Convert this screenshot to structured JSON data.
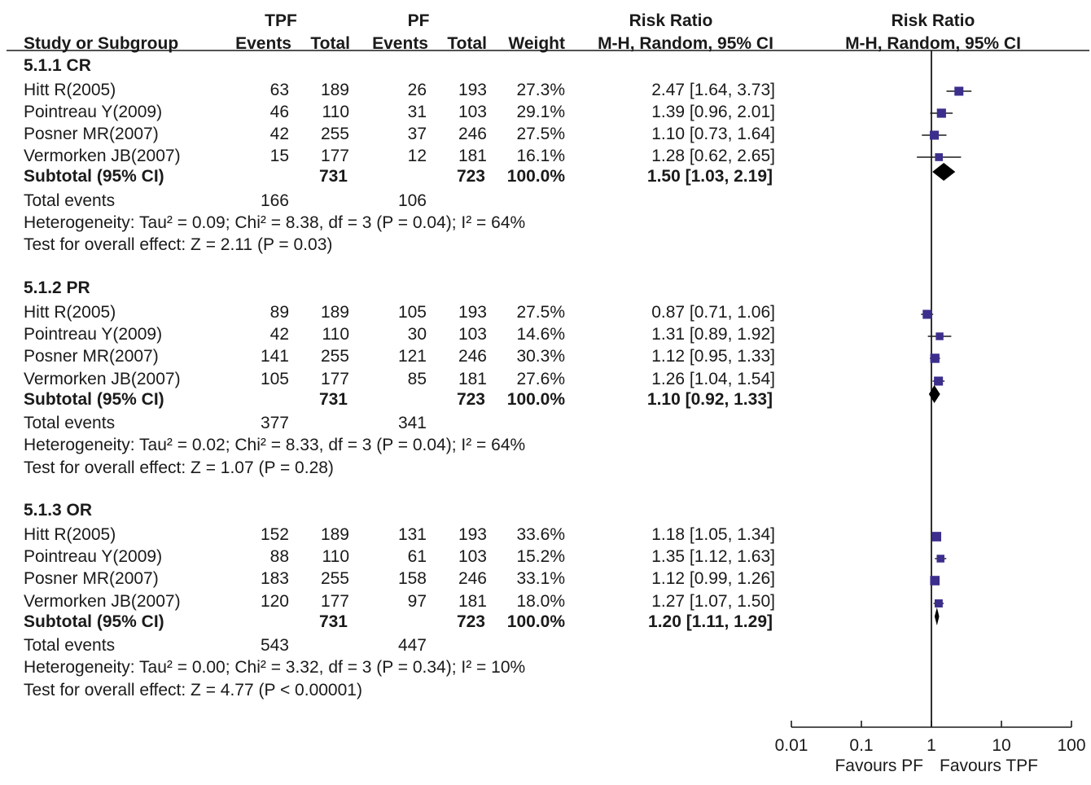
{
  "header": {
    "tpf": "TPF",
    "pf": "PF",
    "rr_group": "Risk Ratio",
    "plot_group": "Risk Ratio",
    "study": "Study or Subgroup",
    "tpf_events": "Events",
    "tpf_total": "Total",
    "pf_events": "Events",
    "pf_total": "Total",
    "weight": "Weight",
    "rr_method": "M-H, Random, 95% CI",
    "plot_method": "M-H, Random, 95% CI"
  },
  "subgroups": [
    {
      "title": "5.1.1 CR",
      "studies": [
        {
          "name": "Hitt R(2005)",
          "tpf_events": "63",
          "tpf_total": "189",
          "pf_events": "26",
          "pf_total": "193",
          "weight": "27.3%",
          "ci": "2.47 [1.64, 3.73]"
        },
        {
          "name": "Pointreau Y(2009)",
          "tpf_events": "46",
          "tpf_total": "110",
          "pf_events": "31",
          "pf_total": "103",
          "weight": "29.1%",
          "ci": "1.39 [0.96, 2.01]"
        },
        {
          "name": "Posner MR(2007)",
          "tpf_events": "42",
          "tpf_total": "255",
          "pf_events": "37",
          "pf_total": "246",
          "weight": "27.5%",
          "ci": "1.10 [0.73, 1.64]"
        },
        {
          "name": "Vermorken JB(2007)",
          "tpf_events": "15",
          "tpf_total": "177",
          "pf_events": "12",
          "pf_total": "181",
          "weight": "16.1%",
          "ci": "1.28 [0.62, 2.65]"
        }
      ],
      "subtotal": {
        "label": "Subtotal (95% CI)",
        "tpf_total": "731",
        "pf_total": "723",
        "weight": "100.0%",
        "ci": "1.50 [1.03, 2.19]"
      },
      "total_events": {
        "label": "Total events",
        "tpf": "166",
        "pf": "106"
      },
      "heterogeneity": "Heterogeneity: Tau² = 0.09; Chi² = 8.38, df = 3 (P = 0.04); I² = 64%",
      "overall": "Test for overall effect: Z = 2.11 (P = 0.03)"
    },
    {
      "title": "5.1.2 PR",
      "studies": [
        {
          "name": "Hitt R(2005)",
          "tpf_events": "89",
          "tpf_total": "189",
          "pf_events": "105",
          "pf_total": "193",
          "weight": "27.5%",
          "ci": "0.87 [0.71, 1.06]"
        },
        {
          "name": "Pointreau Y(2009)",
          "tpf_events": "42",
          "tpf_total": "110",
          "pf_events": "30",
          "pf_total": "103",
          "weight": "14.6%",
          "ci": "1.31 [0.89, 1.92]"
        },
        {
          "name": "Posner MR(2007)",
          "tpf_events": "141",
          "tpf_total": "255",
          "pf_events": "121",
          "pf_total": "246",
          "weight": "30.3%",
          "ci": "1.12 [0.95, 1.33]"
        },
        {
          "name": "Vermorken JB(2007)",
          "tpf_events": "105",
          "tpf_total": "177",
          "pf_events": "85",
          "pf_total": "181",
          "weight": "27.6%",
          "ci": "1.26 [1.04, 1.54]"
        }
      ],
      "subtotal": {
        "label": "Subtotal (95% CI)",
        "tpf_total": "731",
        "pf_total": "723",
        "weight": "100.0%",
        "ci": "1.10 [0.92, 1.33]"
      },
      "total_events": {
        "label": "Total events",
        "tpf": "377",
        "pf": "341"
      },
      "heterogeneity": "Heterogeneity: Tau² = 0.02; Chi² = 8.33, df = 3 (P = 0.04); I² = 64%",
      "overall": "Test for overall effect: Z = 1.07 (P = 0.28)"
    },
    {
      "title": "5.1.3 OR",
      "studies": [
        {
          "name": "Hitt R(2005)",
          "tpf_events": "152",
          "tpf_total": "189",
          "pf_events": "131",
          "pf_total": "193",
          "weight": "33.6%",
          "ci": "1.18 [1.05, 1.34]"
        },
        {
          "name": "Pointreau Y(2009)",
          "tpf_events": "88",
          "tpf_total": "110",
          "pf_events": "61",
          "pf_total": "103",
          "weight": "15.2%",
          "ci": "1.35 [1.12, 1.63]"
        },
        {
          "name": "Posner MR(2007)",
          "tpf_events": "183",
          "tpf_total": "255",
          "pf_events": "158",
          "pf_total": "246",
          "weight": "33.1%",
          "ci": "1.12 [0.99, 1.26]"
        },
        {
          "name": "Vermorken JB(2007)",
          "tpf_events": "120",
          "tpf_total": "177",
          "pf_events": "97",
          "pf_total": "181",
          "weight": "18.0%",
          "ci": "1.27 [1.07, 1.50]"
        }
      ],
      "subtotal": {
        "label": "Subtotal (95% CI)",
        "tpf_total": "731",
        "pf_total": "723",
        "weight": "100.0%",
        "ci": "1.20 [1.11, 1.29]"
      },
      "total_events": {
        "label": "Total events",
        "tpf": "543",
        "pf": "447"
      },
      "heterogeneity": "Heterogeneity: Tau² = 0.00; Chi² = 3.32, df = 3 (P = 0.34); I² = 10%",
      "overall": "Test for overall effect: Z = 4.77 (P < 0.00001)"
    }
  ],
  "axis": {
    "ticks": [
      "0.01",
      "0.1",
      "1",
      "10",
      "100"
    ],
    "favours_left": "Favours PF",
    "favours_right": "Favours TPF"
  },
  "colors": {
    "marker": "#3b2e8c",
    "diamond": "#000000",
    "text": "#1a1a1a"
  },
  "chart_data": {
    "type": "forest",
    "xscale": "log",
    "xlim": [
      0.01,
      100
    ],
    "null_line": 1,
    "xticks": [
      0.01,
      0.1,
      1,
      10,
      100
    ],
    "xlabel_left": "Favours PF",
    "xlabel_right": "Favours TPF",
    "subgroups": [
      {
        "name": "5.1.1 CR",
        "studies": [
          {
            "study": "Hitt R(2005)",
            "rr": 2.47,
            "lo": 1.64,
            "hi": 3.73,
            "weight": 27.3
          },
          {
            "study": "Pointreau Y(2009)",
            "rr": 1.39,
            "lo": 0.96,
            "hi": 2.01,
            "weight": 29.1
          },
          {
            "study": "Posner MR(2007)",
            "rr": 1.1,
            "lo": 0.73,
            "hi": 1.64,
            "weight": 27.5
          },
          {
            "study": "Vermorken JB(2007)",
            "rr": 1.28,
            "lo": 0.62,
            "hi": 2.65,
            "weight": 16.1
          }
        ],
        "pooled": {
          "rr": 1.5,
          "lo": 1.03,
          "hi": 2.19
        }
      },
      {
        "name": "5.1.2 PR",
        "studies": [
          {
            "study": "Hitt R(2005)",
            "rr": 0.87,
            "lo": 0.71,
            "hi": 1.06,
            "weight": 27.5
          },
          {
            "study": "Pointreau Y(2009)",
            "rr": 1.31,
            "lo": 0.89,
            "hi": 1.92,
            "weight": 14.6
          },
          {
            "study": "Posner MR(2007)",
            "rr": 1.12,
            "lo": 0.95,
            "hi": 1.33,
            "weight": 30.3
          },
          {
            "study": "Vermorken JB(2007)",
            "rr": 1.26,
            "lo": 1.04,
            "hi": 1.54,
            "weight": 27.6
          }
        ],
        "pooled": {
          "rr": 1.1,
          "lo": 0.92,
          "hi": 1.33
        }
      },
      {
        "name": "5.1.3 OR",
        "studies": [
          {
            "study": "Hitt R(2005)",
            "rr": 1.18,
            "lo": 1.05,
            "hi": 1.34,
            "weight": 33.6
          },
          {
            "study": "Pointreau Y(2009)",
            "rr": 1.35,
            "lo": 1.12,
            "hi": 1.63,
            "weight": 15.2
          },
          {
            "study": "Posner MR(2007)",
            "rr": 1.12,
            "lo": 0.99,
            "hi": 1.26,
            "weight": 33.1
          },
          {
            "study": "Vermorken JB(2007)",
            "rr": 1.27,
            "lo": 1.07,
            "hi": 1.5,
            "weight": 18.0
          }
        ],
        "pooled": {
          "rr": 1.2,
          "lo": 1.11,
          "hi": 1.29
        }
      }
    ]
  }
}
